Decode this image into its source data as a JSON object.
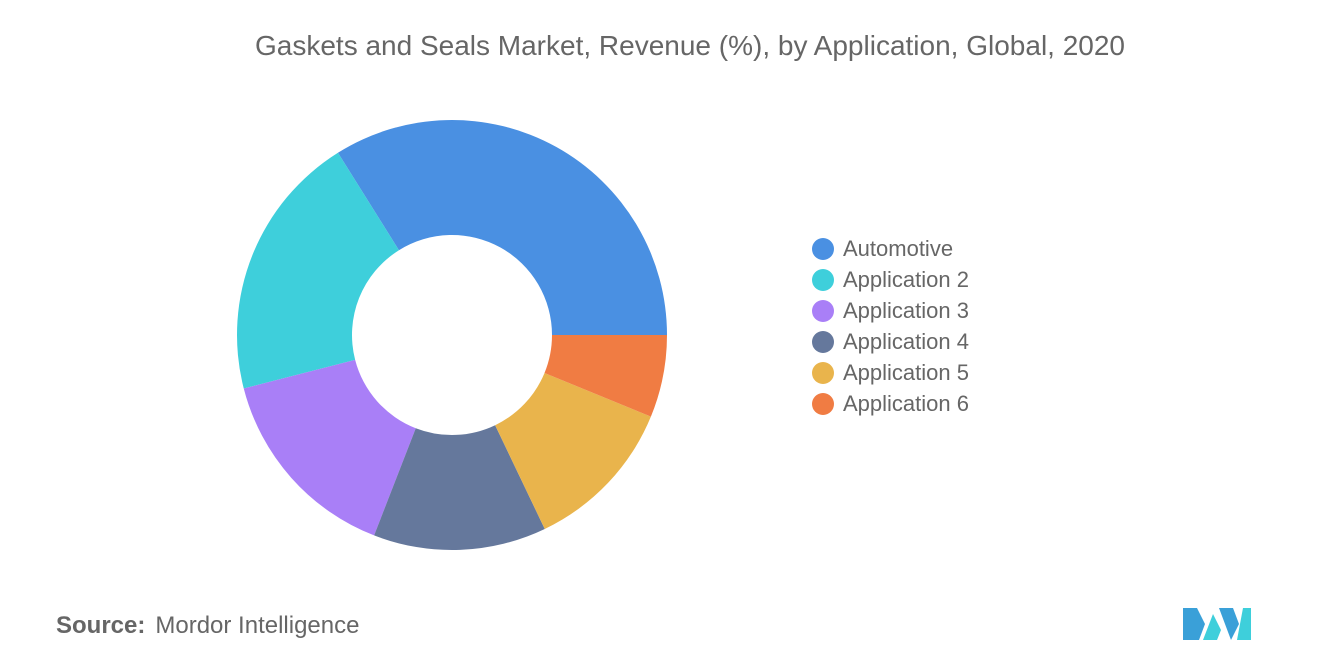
{
  "chart_data": {
    "type": "pie",
    "title": "Gaskets and Seals Market, Revenue (%), by Application, Global, 2020",
    "categories": [
      "Automotive",
      "Application 2",
      "Application 3",
      "Application 4",
      "Application 5",
      "Application 6"
    ],
    "values": [
      33.9,
      20.1,
      15.1,
      13.0,
      11.7,
      6.2
    ],
    "colors": [
      "#4a90e2",
      "#3ecfdb",
      "#a97ff7",
      "#65789c",
      "#e9b44c",
      "#f07c43"
    ],
    "donut": true,
    "legend_position": "right"
  },
  "source": {
    "label": "Source:",
    "text": "Mordor Intelligence"
  },
  "logo": {
    "icon": "mordor-intelligence-logo",
    "colors": [
      "#3aa0d8",
      "#3ecfdb"
    ]
  }
}
